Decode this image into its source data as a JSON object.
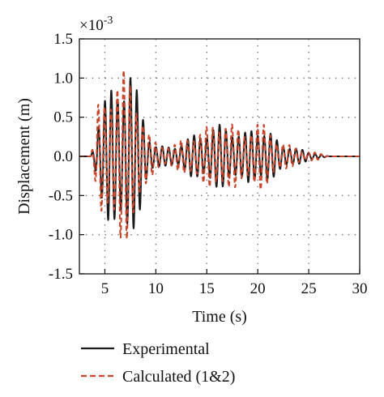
{
  "chart_data": {
    "type": "line",
    "title": "",
    "xlabel": "Time (s)",
    "ylabel": "Displacement (m)",
    "y_multiplier": "×10-3",
    "y_multiplier_base": "×10",
    "y_multiplier_exp": "-3",
    "xlim": [
      2.5,
      30
    ],
    "ylim": [
      -1.5,
      1.5
    ],
    "x_ticks": [
      5,
      10,
      15,
      20,
      25,
      30
    ],
    "x_tick_labels": [
      "5",
      "10",
      "15",
      "20",
      "25",
      "30"
    ],
    "y_ticks": [
      -1.5,
      -1.0,
      -0.5,
      0.0,
      0.5,
      1.0,
      1.5
    ],
    "y_tick_labels": [
      "-1.5",
      "-1.0",
      "-0.5",
      "0.0",
      "0.5",
      "1.0",
      "1.5"
    ],
    "grid": true,
    "legend_position": "bottom-left",
    "series": [
      {
        "name": "Experimental",
        "style": "solid",
        "color": "#1a1a1a",
        "envelope": [
          [
            2.5,
            0.0
          ],
          [
            3.6,
            0.0
          ],
          [
            4.0,
            0.2
          ],
          [
            4.3,
            0.5
          ],
          [
            4.6,
            0.6
          ],
          [
            5.0,
            0.75
          ],
          [
            5.5,
            0.85
          ],
          [
            6.0,
            0.95
          ],
          [
            6.5,
            1.05
          ],
          [
            7.0,
            1.08
          ],
          [
            7.4,
            1.22
          ],
          [
            7.8,
            0.95
          ],
          [
            8.3,
            0.8
          ],
          [
            8.8,
            0.55
          ],
          [
            9.3,
            0.3
          ],
          [
            10.0,
            0.15
          ],
          [
            11.0,
            0.12
          ],
          [
            12.0,
            0.15
          ],
          [
            13.0,
            0.22
          ],
          [
            14.0,
            0.3
          ],
          [
            15.0,
            0.35
          ],
          [
            16.0,
            0.4
          ],
          [
            16.7,
            0.42
          ],
          [
            17.5,
            0.38
          ],
          [
            18.5,
            0.28
          ],
          [
            19.3,
            0.36
          ],
          [
            20.0,
            0.4
          ],
          [
            21.0,
            0.34
          ],
          [
            22.0,
            0.2
          ],
          [
            23.0,
            0.15
          ],
          [
            24.0,
            0.1
          ],
          [
            25.0,
            0.06
          ],
          [
            26.0,
            0.03
          ],
          [
            27.0,
            0.0
          ],
          [
            30.0,
            0.0
          ]
        ]
      },
      {
        "name": "Calculated (1&2)",
        "style": "dashed",
        "color": "#c8442a",
        "envelope": [
          [
            2.5,
            0.0
          ],
          [
            3.6,
            0.0
          ],
          [
            4.0,
            0.25
          ],
          [
            4.3,
            0.65
          ],
          [
            4.6,
            0.75
          ],
          [
            5.0,
            0.8
          ],
          [
            5.5,
            0.92
          ],
          [
            6.0,
            1.0
          ],
          [
            6.5,
            1.12
          ],
          [
            7.0,
            1.1
          ],
          [
            7.4,
            1.05
          ],
          [
            7.8,
            0.95
          ],
          [
            8.3,
            0.75
          ],
          [
            8.8,
            0.5
          ],
          [
            9.3,
            0.3
          ],
          [
            10.0,
            0.18
          ],
          [
            11.0,
            0.14
          ],
          [
            12.0,
            0.17
          ],
          [
            13.0,
            0.25
          ],
          [
            14.0,
            0.32
          ],
          [
            15.0,
            0.38
          ],
          [
            16.0,
            0.45
          ],
          [
            16.7,
            0.5
          ],
          [
            17.5,
            0.42
          ],
          [
            18.5,
            0.33
          ],
          [
            19.3,
            0.4
          ],
          [
            20.0,
            0.45
          ],
          [
            21.0,
            0.38
          ],
          [
            22.0,
            0.22
          ],
          [
            23.0,
            0.15
          ],
          [
            24.0,
            0.1
          ],
          [
            25.0,
            0.07
          ],
          [
            26.0,
            0.04
          ],
          [
            27.0,
            0.0
          ],
          [
            30.0,
            0.0
          ]
        ]
      }
    ],
    "oscillation_frequency_hz": 1.6
  }
}
